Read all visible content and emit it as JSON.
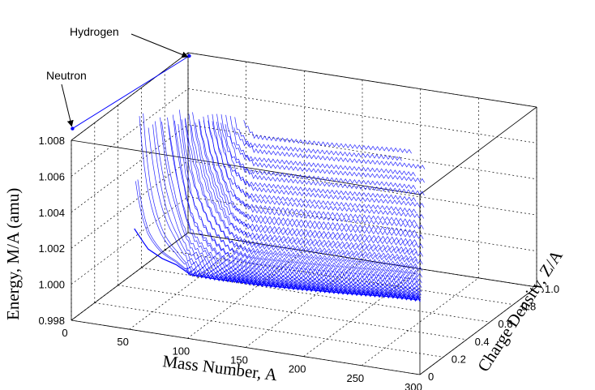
{
  "chart_data": {
    "type": "line",
    "title": "",
    "xlabel": "Mass Number, A",
    "ylabel": "Charge Density, Z/A",
    "zlabel": "Energy, M/A (amu)",
    "xlim": [
      0,
      300
    ],
    "ylim": [
      0,
      1.0
    ],
    "zlim": [
      0.998,
      1.008
    ],
    "x_ticks": [
      "0",
      "50",
      "100",
      "150",
      "200",
      "250",
      "300"
    ],
    "y_ticks": [
      "0",
      "0.2",
      "0.4",
      "0.6",
      "0.8",
      "1.0"
    ],
    "z_ticks": [
      "0.998",
      "1.000",
      "1.002",
      "1.004",
      "1.006",
      "1.008"
    ],
    "grid": true,
    "series_color": "#0000ff",
    "annotations": [
      {
        "text": "Hydrogen",
        "point": [
          1,
          1.0,
          1.00783
        ]
      },
      {
        "text": "Neutron",
        "point": [
          1,
          0.0,
          1.00866
        ]
      }
    ],
    "light_nuclides_line": {
      "from": [
        1,
        0.0,
        1.00866
      ],
      "to": [
        1,
        1.0,
        1.00783
      ]
    },
    "valley_of_stability": [
      [
        4,
        0.5,
        1.0007
      ],
      [
        12,
        0.5,
        1.0
      ],
      [
        16,
        0.5,
        0.99968
      ],
      [
        28,
        0.5,
        0.99928
      ],
      [
        40,
        0.5,
        0.99906
      ],
      [
        56,
        0.464,
        0.99884
      ],
      [
        80,
        0.45,
        0.9989
      ],
      [
        100,
        0.44,
        0.999
      ],
      [
        120,
        0.42,
        0.99913
      ],
      [
        150,
        0.41,
        0.99929
      ],
      [
        180,
        0.4,
        0.99946
      ],
      [
        208,
        0.394,
        0.99962
      ],
      [
        238,
        0.387,
        0.99981
      ],
      [
        260,
        0.38,
        0.9999
      ]
    ]
  }
}
